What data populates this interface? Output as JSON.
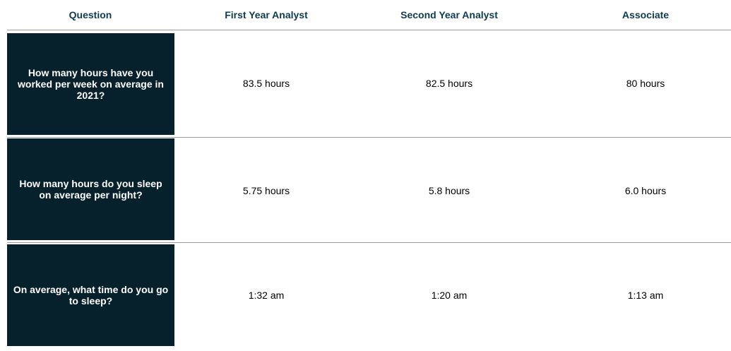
{
  "headers": [
    "Question",
    "First Year Analyst",
    "Second Year Analyst",
    "Associate"
  ],
  "rows": [
    {
      "question": "How many hours have you worked per week on average in 2021?",
      "values": [
        "83.5 hours",
        "82.5 hours",
        "80 hours"
      ]
    },
    {
      "question": "How many hours do you sleep on average per night?",
      "values": [
        "5.75 hours",
        "5.8 hours",
        "6.0 hours"
      ]
    },
    {
      "question": "On average, what time do you go to sleep?",
      "values": [
        "1:32 am",
        "1:20 am",
        "1:13 am"
      ]
    }
  ],
  "colors": {
    "header_text": "#0d3b50",
    "question_cell": "#06212b",
    "divider": "#9a9a9a"
  }
}
